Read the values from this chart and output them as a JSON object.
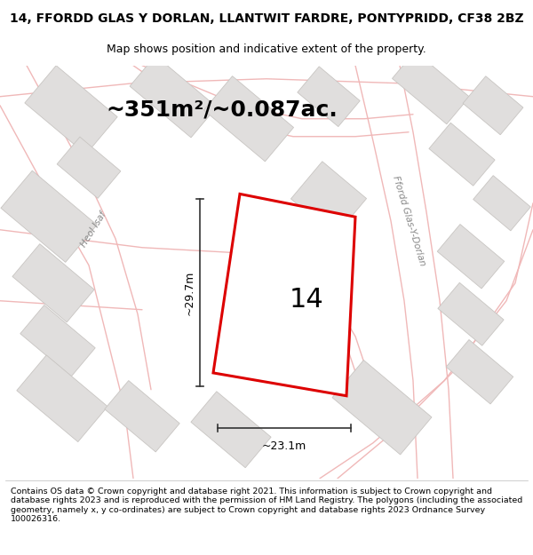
{
  "title": "14, FFORDD GLAS Y DORLAN, LLANTWIT FARDRE, PONTYPRIDD, CF38 2BZ",
  "subtitle": "Map shows position and indicative extent of the property.",
  "area_text": "~351m²/~0.087ac.",
  "dim_width": "~23.1m",
  "dim_height": "~29.7m",
  "property_number": "14",
  "street_label_left": "Heol Isaf",
  "street_label_right": "Ffordd Glas-Y-Dorlan",
  "footer": "Contains OS data © Crown copyright and database right 2021. This information is subject to Crown copyright and database rights 2023 and is reproduced with the permission of HM Land Registry. The polygons (including the associated geometry, namely x, y co-ordinates) are subject to Crown copyright and database rights 2023 Ordnance Survey 100026316.",
  "map_bg": "#ffffff",
  "property_fill": "#ffffff",
  "property_edge": "#dd0000",
  "road_color": "#f0b8b8",
  "building_fill": "#e0dedd",
  "building_edge": "#c8c5c2",
  "dim_line_color": "#333333",
  "title_fontsize": 10,
  "subtitle_fontsize": 9,
  "footer_fontsize": 6.8,
  "street_fontsize": 7.5,
  "area_fontsize": 18
}
